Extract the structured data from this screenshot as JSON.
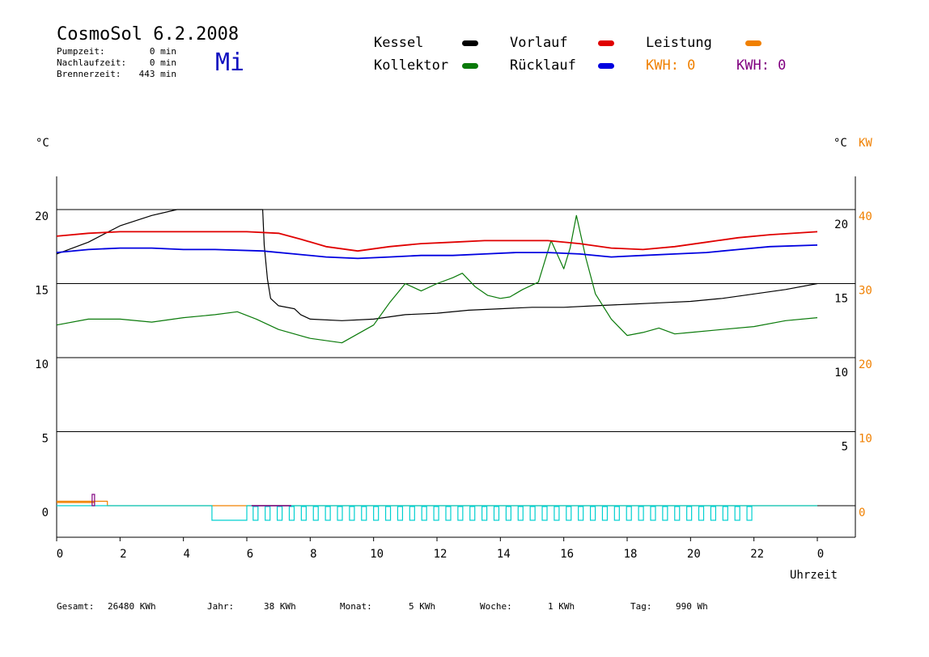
{
  "header": {
    "title": "CosmoSol 6.2.2008",
    "weekday": "Mi",
    "stats": [
      {
        "label": "Pumpzeit:",
        "value": "0 min"
      },
      {
        "label": "Nachlaufzeit:",
        "value": "0 min"
      },
      {
        "label": "Brennerzeit:",
        "value": "443 min"
      }
    ]
  },
  "legend": {
    "kessel": "Kessel",
    "kollektor": "Kollektor",
    "vorlauf": "Vorlauf",
    "ruecklauf": "Rücklauf",
    "leistung": "Leistung",
    "kwh1": "KWH: 0",
    "kwh2": "KWH: 0"
  },
  "footer": {
    "gesamt_label": "Gesamt:",
    "gesamt_value": "26480 KWh",
    "jahr_label": "Jahr:",
    "jahr_value": "38 KWh",
    "monat_label": "Monat:",
    "monat_value": "5 KWh",
    "woche_label": "Woche:",
    "woche_value": "1 KWh",
    "tag_label": "Tag:",
    "tag_value": "990 Wh"
  },
  "colors": {
    "kessel": "#000000",
    "kollektor": "#0a7a0a",
    "vorlauf": "#e00000",
    "ruecklauf": "#0000e0",
    "leistung": "#f08000",
    "kwh2": "#800080",
    "pump": "#00d0d0"
  },
  "chart_data": {
    "type": "line",
    "ylabel_left": "°C",
    "ylabel_right": "°C",
    "ylabel_right2": "KW",
    "xlabel": "Uhrzeit",
    "x_ticks": [
      "0",
      "2",
      "4",
      "6",
      "8",
      "10",
      "12",
      "14",
      "16",
      "18",
      "20",
      "22",
      "0"
    ],
    "y_ticks_left": [
      "0",
      "5",
      "10",
      "15",
      "20"
    ],
    "y_ticks_right": [
      "5",
      "10",
      "15",
      "20"
    ],
    "y_ticks_right2": [
      "0",
      "10",
      "20",
      "30",
      "40"
    ],
    "ylim": [
      0,
      20
    ],
    "grid": true,
    "series": [
      {
        "name": "Kessel",
        "color": "#000000",
        "points": [
          [
            0,
            17.0
          ],
          [
            1,
            17.8
          ],
          [
            2,
            18.9
          ],
          [
            3,
            19.6
          ],
          [
            3.8,
            20
          ],
          [
            6.5,
            20
          ],
          [
            6.55,
            17.6
          ],
          [
            6.65,
            15.3
          ],
          [
            6.75,
            14.0
          ],
          [
            7,
            13.5
          ],
          [
            7.5,
            13.3
          ],
          [
            7.7,
            12.9
          ],
          [
            8,
            12.6
          ],
          [
            9,
            12.5
          ],
          [
            10,
            12.6
          ],
          [
            11,
            12.9
          ],
          [
            12,
            13.0
          ],
          [
            13,
            13.2
          ],
          [
            14,
            13.3
          ],
          [
            15,
            13.4
          ],
          [
            16,
            13.4
          ],
          [
            17,
            13.5
          ],
          [
            18,
            13.6
          ],
          [
            19,
            13.7
          ],
          [
            20,
            13.8
          ],
          [
            21,
            14.0
          ],
          [
            22,
            14.3
          ],
          [
            23,
            14.6
          ],
          [
            24,
            15.0
          ]
        ]
      },
      {
        "name": "Kollektor",
        "color": "#0a7a0a",
        "points": [
          [
            0,
            12.2
          ],
          [
            1,
            12.6
          ],
          [
            2,
            12.6
          ],
          [
            3,
            12.4
          ],
          [
            4,
            12.7
          ],
          [
            5,
            12.9
          ],
          [
            5.7,
            13.1
          ],
          [
            6.3,
            12.6
          ],
          [
            7,
            11.9
          ],
          [
            8,
            11.3
          ],
          [
            9,
            11.0
          ],
          [
            10,
            12.2
          ],
          [
            10.5,
            13.7
          ],
          [
            11,
            15.0
          ],
          [
            11.5,
            14.5
          ],
          [
            12,
            15.0
          ],
          [
            12.5,
            15.4
          ],
          [
            12.8,
            15.7
          ],
          [
            13.2,
            14.8
          ],
          [
            13.6,
            14.2
          ],
          [
            14,
            14.0
          ],
          [
            14.3,
            14.1
          ],
          [
            14.7,
            14.6
          ],
          [
            15.2,
            15.1
          ],
          [
            15.6,
            17.9
          ],
          [
            16,
            16.0
          ],
          [
            16.2,
            17.4
          ],
          [
            16.4,
            19.6
          ],
          [
            16.7,
            16.7
          ],
          [
            17,
            14.3
          ],
          [
            17.5,
            12.6
          ],
          [
            18,
            11.5
          ],
          [
            18.5,
            11.7
          ],
          [
            19,
            12.0
          ],
          [
            19.5,
            11.6
          ],
          [
            20,
            11.7
          ],
          [
            21,
            11.9
          ],
          [
            22,
            12.1
          ],
          [
            23,
            12.5
          ],
          [
            24,
            12.7
          ]
        ]
      },
      {
        "name": "Vorlauf",
        "color": "#e00000",
        "points": [
          [
            0,
            18.2
          ],
          [
            1,
            18.4
          ],
          [
            2,
            18.5
          ],
          [
            3,
            18.5
          ],
          [
            4,
            18.5
          ],
          [
            5,
            18.5
          ],
          [
            6,
            18.5
          ],
          [
            7,
            18.4
          ],
          [
            7.7,
            18.0
          ],
          [
            8.5,
            17.5
          ],
          [
            9.5,
            17.2
          ],
          [
            10.5,
            17.5
          ],
          [
            11.5,
            17.7
          ],
          [
            12.5,
            17.8
          ],
          [
            13.5,
            17.9
          ],
          [
            14.5,
            17.9
          ],
          [
            15.5,
            17.9
          ],
          [
            16.5,
            17.7
          ],
          [
            17.5,
            17.4
          ],
          [
            18.5,
            17.3
          ],
          [
            19.5,
            17.5
          ],
          [
            20.5,
            17.8
          ],
          [
            21.5,
            18.1
          ],
          [
            22.5,
            18.3
          ],
          [
            24,
            18.5
          ]
        ]
      },
      {
        "name": "Rücklauf",
        "color": "#0000e0",
        "points": [
          [
            0,
            17.1
          ],
          [
            1,
            17.3
          ],
          [
            2,
            17.4
          ],
          [
            3,
            17.4
          ],
          [
            4,
            17.3
          ],
          [
            5,
            17.3
          ],
          [
            6.5,
            17.2
          ],
          [
            7.5,
            17.0
          ],
          [
            8.5,
            16.8
          ],
          [
            9.5,
            16.7
          ],
          [
            10.5,
            16.8
          ],
          [
            11.5,
            16.9
          ],
          [
            12.5,
            16.9
          ],
          [
            13.5,
            17.0
          ],
          [
            14.5,
            17.1
          ],
          [
            15.5,
            17.1
          ],
          [
            16.5,
            17.0
          ],
          [
            17.5,
            16.8
          ],
          [
            18.5,
            16.9
          ],
          [
            19.5,
            17.0
          ],
          [
            20.5,
            17.1
          ],
          [
            21.5,
            17.3
          ],
          [
            22.5,
            17.5
          ],
          [
            24,
            17.6
          ]
        ]
      },
      {
        "name": "Leistung",
        "color": "#f08000",
        "points": [
          [
            0,
            0.3
          ],
          [
            1.6,
            0.3
          ],
          [
            1.6,
            0
          ],
          [
            24,
            0
          ]
        ]
      }
    ]
  }
}
